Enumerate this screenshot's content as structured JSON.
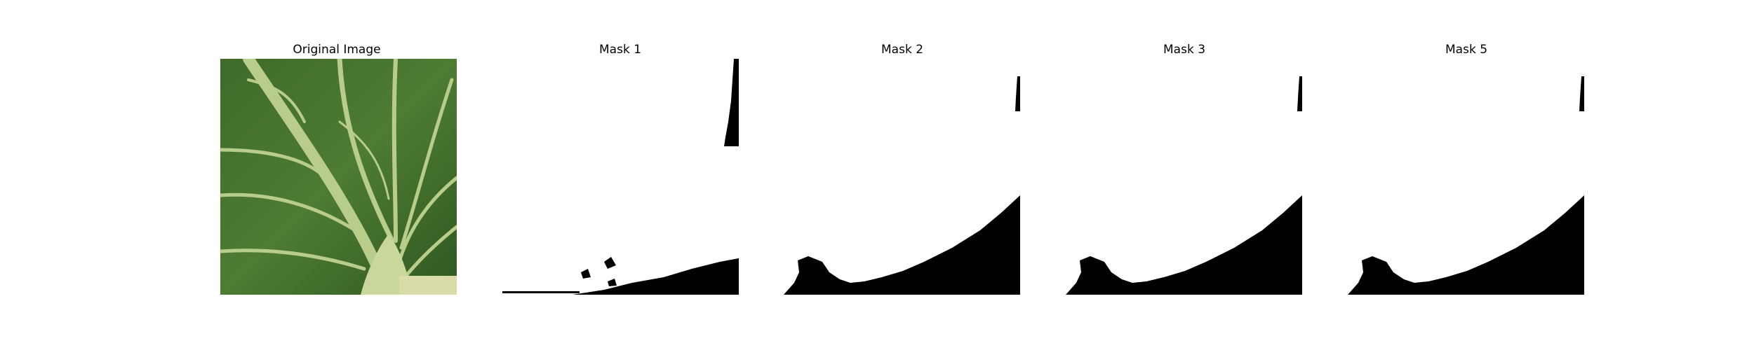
{
  "panels": [
    {
      "title": "Original Image",
      "icon": "leaf-photo"
    },
    {
      "title": "Mask 1",
      "icon": "mask-image"
    },
    {
      "title": "Mask 2",
      "icon": "mask-image"
    },
    {
      "title": "Mask 3",
      "icon": "mask-image"
    },
    {
      "title": "Mask 5",
      "icon": "mask-image"
    }
  ],
  "colors": {
    "leaf_dark": "#355f23",
    "leaf_mid": "#4f7d33",
    "vein": "#b9cf8a",
    "mask_fg": "#000000",
    "mask_bg": "#ffffff"
  }
}
